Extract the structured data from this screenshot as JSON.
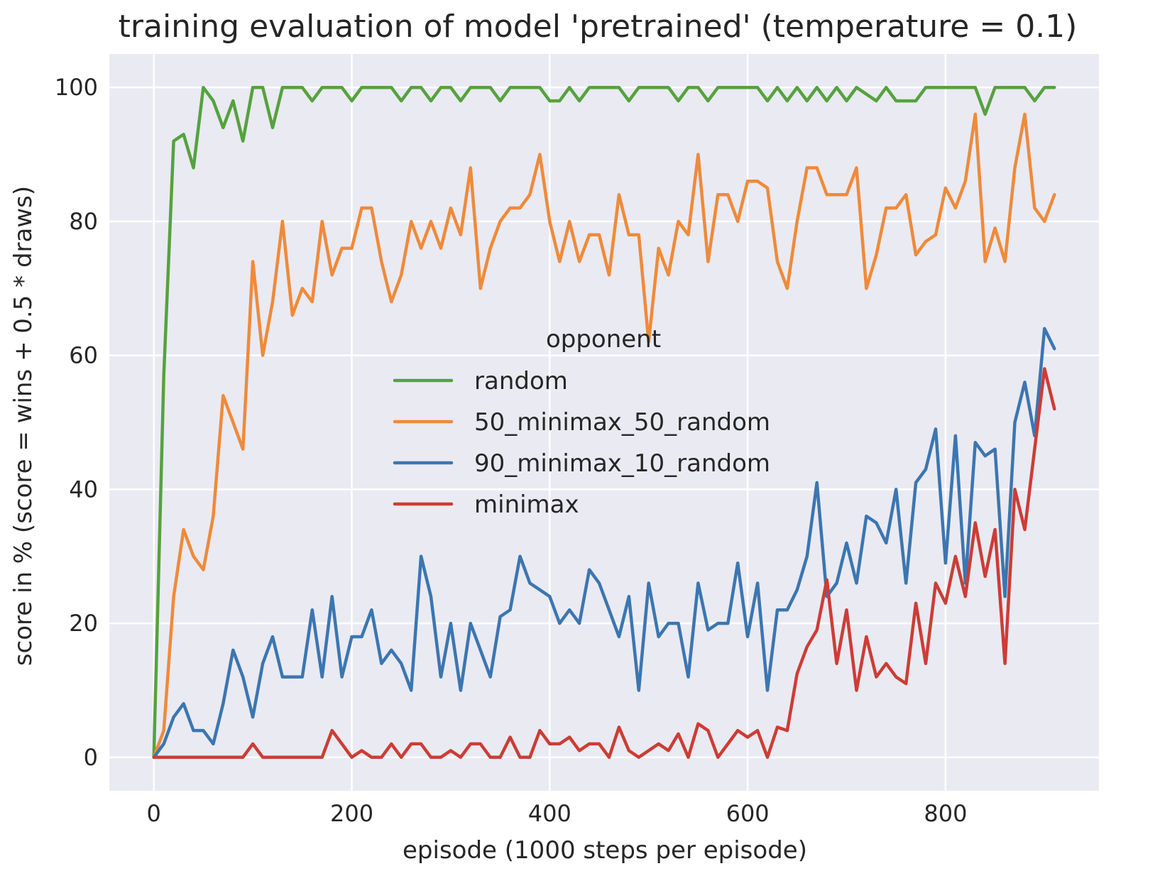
{
  "chart_data": {
    "type": "line",
    "title": "training evaluation of model 'pretrained' (temperature = 0.1)",
    "xlabel": "episode (1000 steps per episode)",
    "ylabel": "score in % (score = wins + 0.5 * draws)",
    "xlim": [
      -45,
      955
    ],
    "ylim": [
      -5,
      105
    ],
    "xticks": [
      0,
      200,
      400,
      600,
      800
    ],
    "yticks": [
      0,
      20,
      40,
      60,
      80,
      100
    ],
    "xtick_labels": [
      "0",
      "200",
      "400",
      "600",
      "800"
    ],
    "ytick_labels": [
      "0",
      "20",
      "40",
      "60",
      "80",
      "100"
    ],
    "grid": true,
    "legend": {
      "title": "opponent",
      "placement": "center",
      "entries": [
        "random",
        "50_minimax_50_random",
        "90_minimax_10_random",
        "minimax"
      ]
    },
    "x": [
      0,
      10,
      20,
      30,
      40,
      50,
      60,
      70,
      80,
      90,
      100,
      110,
      120,
      130,
      140,
      150,
      160,
      170,
      180,
      190,
      200,
      210,
      220,
      230,
      240,
      250,
      260,
      270,
      280,
      290,
      300,
      310,
      320,
      330,
      340,
      350,
      360,
      370,
      380,
      390,
      400,
      410,
      420,
      430,
      440,
      450,
      460,
      470,
      480,
      490,
      500,
      510,
      520,
      530,
      540,
      550,
      560,
      570,
      580,
      590,
      600,
      610,
      620,
      630,
      640,
      650,
      660,
      670,
      680,
      690,
      700,
      710,
      720,
      730,
      740,
      750,
      760,
      770,
      780,
      790,
      800,
      810,
      820,
      830,
      840,
      850,
      860,
      870,
      880,
      890,
      900,
      910
    ],
    "series": [
      {
        "name": "random",
        "color": "#55a23e",
        "values": [
          0,
          57,
          92,
          93,
          88,
          100,
          98,
          94,
          98,
          92,
          100,
          100,
          94,
          100,
          100,
          100,
          98,
          100,
          100,
          100,
          98,
          100,
          100,
          100,
          100,
          98,
          100,
          100,
          98,
          100,
          100,
          98,
          100,
          100,
          100,
          98,
          100,
          100,
          100,
          100,
          98,
          98,
          100,
          98,
          100,
          100,
          100,
          100,
          98,
          100,
          100,
          100,
          100,
          98,
          100,
          100,
          98,
          100,
          100,
          100,
          100,
          100,
          98,
          100,
          98,
          100,
          98,
          100,
          98,
          100,
          98,
          100,
          99,
          98,
          100,
          98,
          98,
          98,
          100,
          100,
          100,
          100,
          100,
          100,
          96,
          100,
          100,
          100,
          100,
          98,
          100,
          100
        ]
      },
      {
        "name": "50_minimax_50_random",
        "color": "#ef8a3a",
        "values": [
          0,
          4,
          24,
          34,
          30,
          28,
          36,
          54,
          50,
          46,
          74,
          60,
          68,
          80,
          66,
          70,
          68,
          80,
          72,
          76,
          76,
          82,
          82,
          74,
          68,
          72,
          80,
          76,
          80,
          76,
          82,
          78,
          88,
          70,
          76,
          80,
          82,
          82,
          84,
          90,
          80,
          74,
          80,
          74,
          78,
          78,
          72,
          84,
          78,
          78,
          62,
          76,
          72,
          80,
          78,
          90,
          74,
          84,
          84,
          80,
          86,
          86,
          85,
          74,
          70,
          80,
          88,
          88,
          84,
          84,
          84,
          88,
          70,
          75,
          82,
          82,
          84,
          75,
          77,
          78,
          85,
          82,
          86,
          96,
          74,
          79,
          74,
          88,
          96,
          82,
          80,
          84
        ]
      },
      {
        "name": "90_minimax_10_random",
        "color": "#3b76b1",
        "values": [
          0,
          2,
          6,
          8,
          4,
          4,
          2,
          8,
          16,
          12,
          6,
          14,
          18,
          12,
          12,
          12,
          22,
          12,
          24,
          12,
          18,
          18,
          22,
          14,
          16,
          14,
          10,
          30,
          24,
          12,
          20,
          10,
          20,
          16,
          12,
          21,
          22,
          30,
          26,
          25,
          24,
          20,
          22,
          20,
          28,
          26,
          22,
          18,
          24,
          10,
          26,
          18,
          20,
          20,
          12,
          26,
          19,
          20,
          20,
          29,
          18,
          26,
          10,
          22,
          22,
          25,
          30,
          41,
          24,
          26,
          32,
          26,
          36,
          35,
          32,
          40,
          26,
          41,
          43,
          49,
          29,
          48,
          26,
          47,
          45,
          46,
          24,
          50,
          56,
          48,
          64,
          61
        ]
      },
      {
        "name": "minimax",
        "color": "#cc3d35",
        "values": [
          0,
          0,
          0,
          0,
          0,
          0,
          0,
          0,
          0,
          0,
          2,
          0,
          0,
          0,
          0,
          0,
          0,
          0,
          4,
          2,
          0,
          1,
          0,
          0,
          2,
          0,
          2,
          2,
          0,
          0,
          1,
          0,
          2,
          2,
          0,
          0,
          3,
          0,
          0,
          4,
          2,
          2,
          3,
          1,
          2,
          2,
          0,
          4.5,
          1,
          0,
          1,
          2,
          1,
          3.5,
          0,
          5,
          4,
          0,
          2,
          4,
          3,
          4,
          0,
          4.5,
          4,
          12.5,
          16.5,
          19,
          26.5,
          14,
          22,
          10,
          18,
          12,
          14,
          12,
          11,
          23,
          14,
          26,
          23,
          30,
          24,
          35,
          27,
          34,
          14,
          40,
          34,
          46,
          58,
          52
        ]
      }
    ]
  }
}
